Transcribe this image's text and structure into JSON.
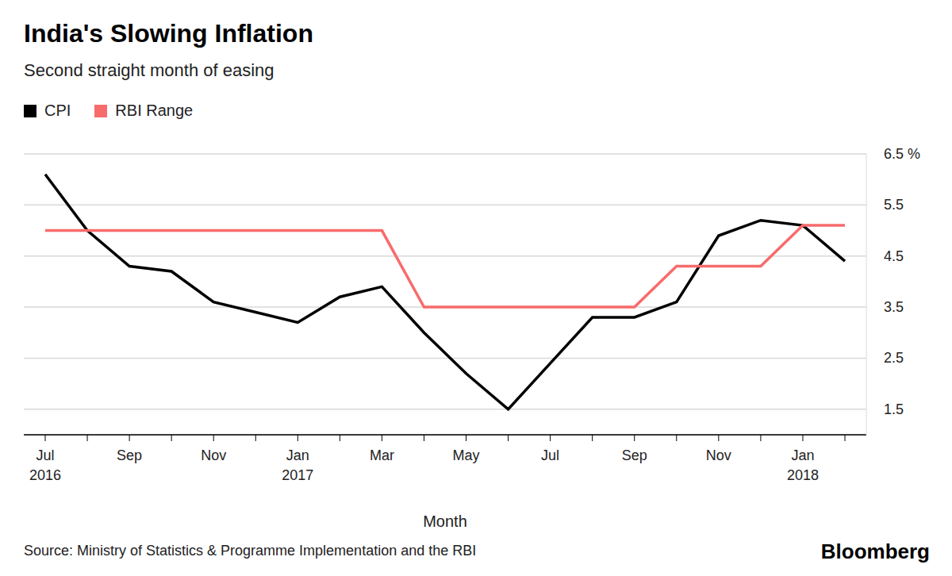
{
  "chart_data": {
    "type": "line",
    "title": "India's Slowing Inflation",
    "subtitle": "Second straight month of easing",
    "x_label": "Month",
    "source": "Source: Ministry of Statistics & Programme Implementation and the RBI",
    "credit": "Bloomberg",
    "categories": [
      "Jul 2016",
      null,
      "Sep",
      null,
      "Nov",
      null,
      "Jan 2017",
      null,
      "Mar",
      null,
      "May",
      null,
      "Jul",
      null,
      "Sep",
      null,
      "Nov",
      null,
      "Jan 2018",
      null
    ],
    "series": [
      {
        "name": "CPI",
        "color": "#000000",
        "values": [
          6.1,
          5.0,
          4.3,
          4.2,
          3.6,
          3.4,
          3.2,
          3.7,
          3.9,
          3.0,
          2.2,
          1.5,
          2.4,
          3.3,
          3.3,
          3.6,
          4.9,
          5.2,
          5.1,
          4.4
        ]
      },
      {
        "name": "RBI Range",
        "color": "#f86b6b",
        "values": [
          5.0,
          5.0,
          5.0,
          5.0,
          5.0,
          5.0,
          5.0,
          5.0,
          5.0,
          3.5,
          3.5,
          3.5,
          3.5,
          3.5,
          3.5,
          4.3,
          4.3,
          4.3,
          5.1,
          5.1
        ]
      }
    ],
    "ylim": [
      1,
      6.5
    ],
    "yticks": [
      1.5,
      2.5,
      3.5,
      4.5,
      5.5,
      {
        "value": 6.5,
        "label": "6.5 %"
      }
    ],
    "grid": true,
    "legend": "top-left"
  }
}
